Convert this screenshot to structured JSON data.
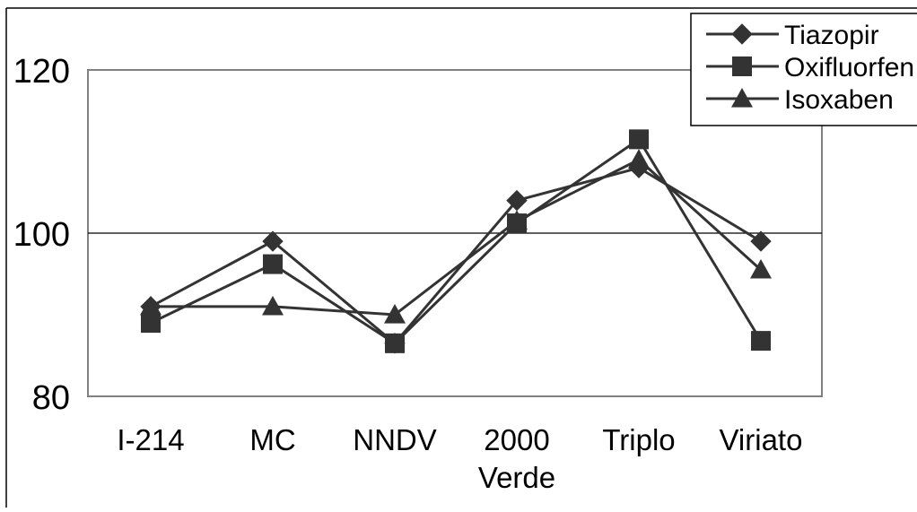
{
  "chart_data": {
    "type": "line",
    "categories": [
      [
        "I-214"
      ],
      [
        "MC"
      ],
      [
        "NNDV"
      ],
      [
        "2000",
        "Verde"
      ],
      [
        "Triplo"
      ],
      [
        "Viriato"
      ]
    ],
    "series": [
      {
        "name": "Tiazopir",
        "marker": "diamond",
        "values": [
          91,
          99,
          86.5,
          104,
          108,
          99
        ]
      },
      {
        "name": "Oxifluorfen",
        "marker": "square",
        "values": [
          89,
          96.2,
          86.5,
          101.2,
          111.5,
          86.8
        ]
      },
      {
        "name": "Isoxaben",
        "marker": "triangle",
        "values": [
          91,
          91,
          90,
          101.5,
          109,
          95.5
        ]
      }
    ],
    "yticks": [
      "120",
      "100",
      "80"
    ],
    "ylim": [
      80,
      120
    ],
    "grid": "horizontal",
    "legend": "top-right",
    "colors": {
      "line": "#333333",
      "marker": "#333333",
      "grid": "#000000",
      "frame": "#808080"
    }
  }
}
